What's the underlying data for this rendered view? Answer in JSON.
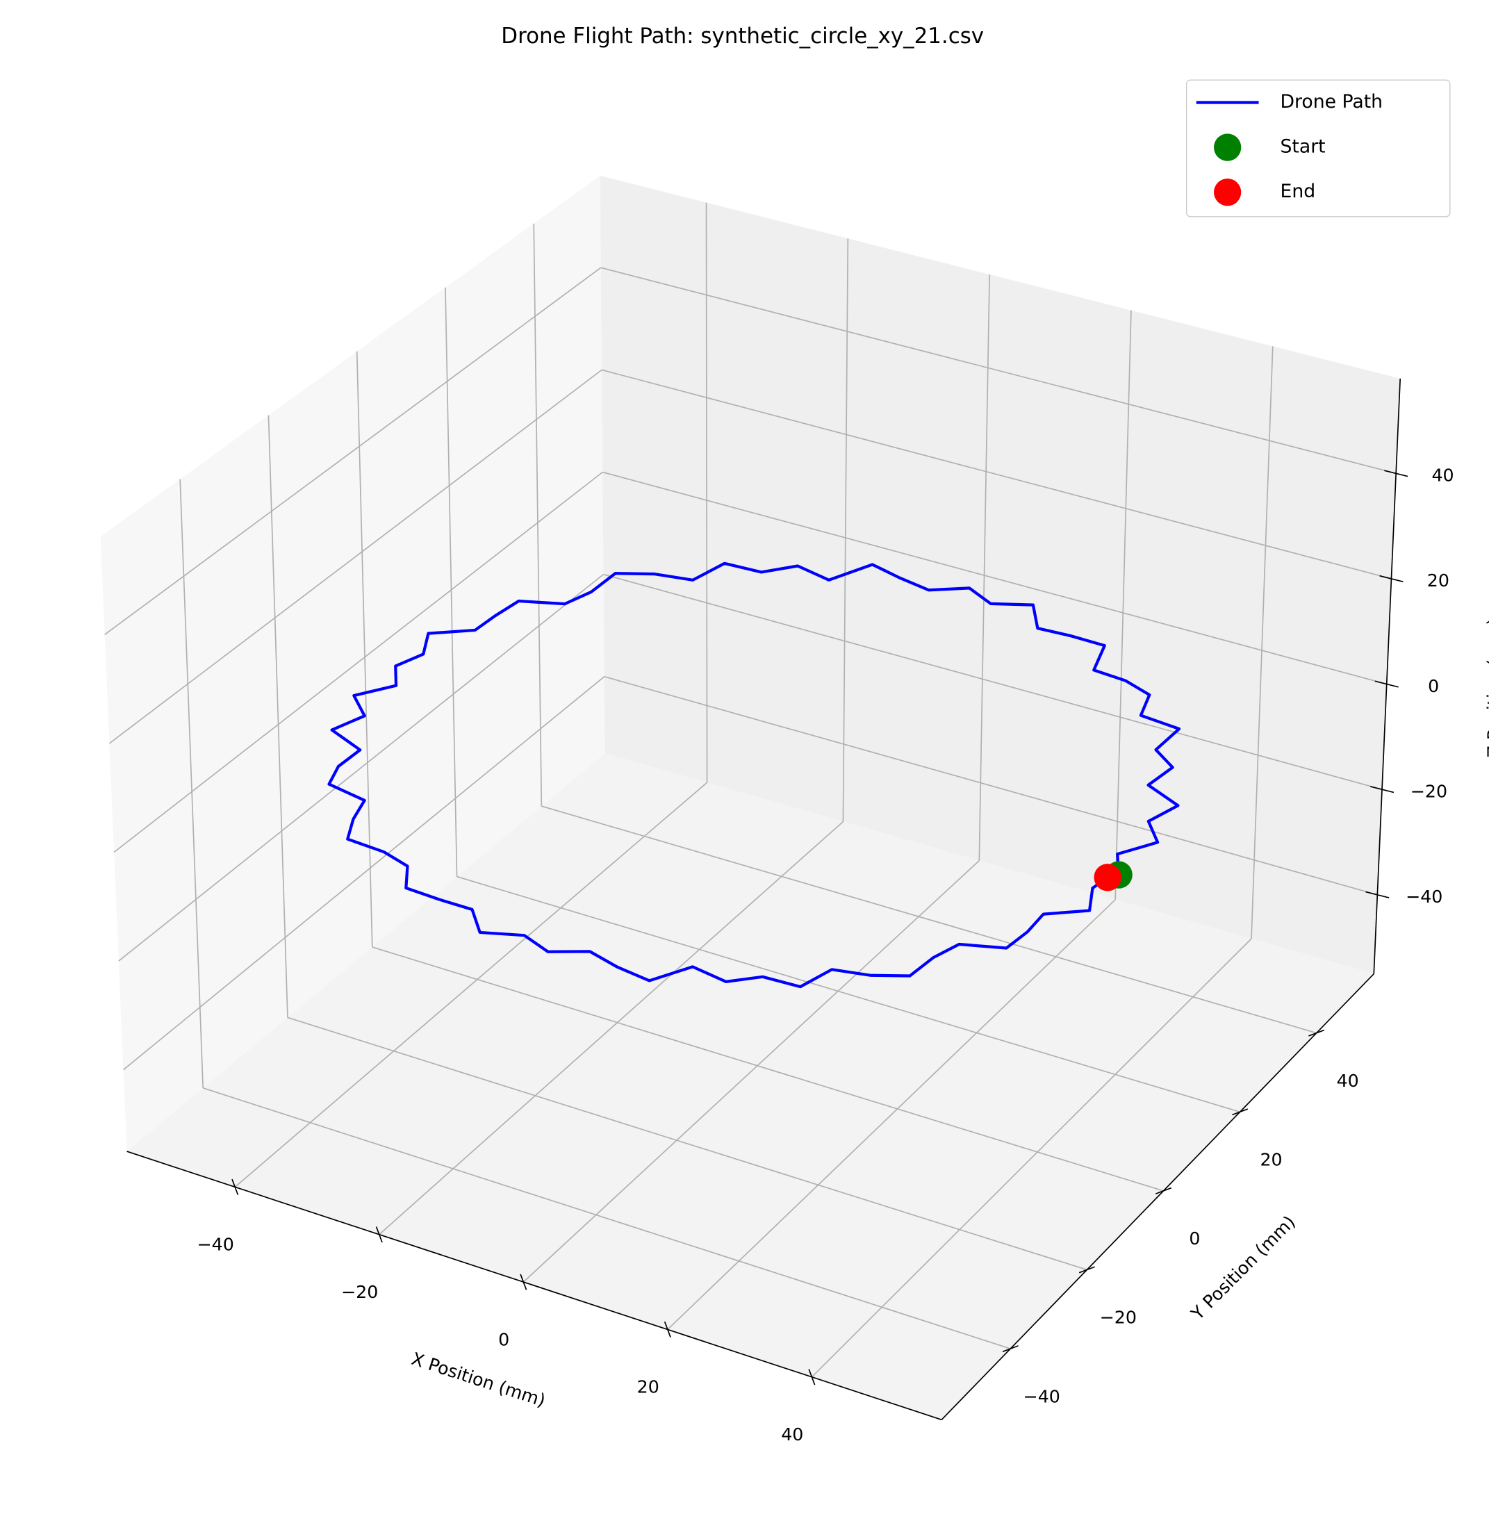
{
  "chart_data": {
    "type": "line3d",
    "title": "Drone Flight Path: synthetic_circle_xy_21.csv",
    "xlabel": "X Position (mm)",
    "ylabel": "Y Position (mm)",
    "zlabel": "Z Position (mm)",
    "xlim": [
      -55,
      58
    ],
    "ylim": [
      -58,
      55
    ],
    "zlim": [
      -55,
      58
    ],
    "xticks": [
      {
        "value": -40,
        "label": "−40"
      },
      {
        "value": -20,
        "label": "−20"
      },
      0,
      20,
      40
    ],
    "yticks": [
      {
        "value": -40,
        "label": "−40"
      },
      {
        "value": -20,
        "label": "−20"
      },
      0,
      20,
      40
    ],
    "zticks": [
      {
        "value": -40,
        "label": "−40"
      },
      {
        "value": -20,
        "label": "−20"
      },
      0,
      20,
      40
    ],
    "grid": true,
    "legend": "upper right",
    "series": [
      {
        "name": "Drone Path",
        "kind": "line",
        "color": "#0000ff",
        "x": [
          50.5,
          48.0,
          51.0,
          47.6,
          49.0,
          43.4,
          44.0,
          40.1,
          40.2,
          34.4,
          32.9,
          28.6,
          23.8,
          22.0,
          17.1,
          12.5,
          9.1,
          4.3,
          0.0,
          -4.2,
          -8.8,
          -13.6,
          -16.3,
          -21.5,
          -24.6,
          -29.7,
          -30.9,
          -35.8,
          -40.0,
          -40.1,
          -41.3,
          -46.5,
          -47.0,
          -47.2,
          -51.6,
          -49.4,
          -50.7,
          -48.1,
          -51.1,
          -47.4,
          -48.9,
          -43.5,
          -43.6,
          -42.3,
          -36.7,
          -35.5,
          -33.6,
          -28.4,
          -24.3,
          -21.8,
          -17.1,
          -12.6,
          -9.1,
          -4.3,
          0.0,
          4.2,
          8.8,
          13.6,
          16.4,
          21.5,
          24.7,
          29.7,
          31.0,
          35.7,
          39.8,
          40.2,
          41.4,
          46.8,
          47.2,
          46.9,
          51.4,
          49.2,
          49.6
        ],
        "y": [
          0.0,
          4.2,
          9.0,
          12.8,
          17.8,
          20.3,
          25.4,
          28.1,
          33.8,
          34.4,
          39.2,
          40.8,
          41.2,
          47.0,
          47.1,
          46.8,
          51.5,
          49.3,
          51.4,
          48.6,
          49.5,
          50.8,
          44.9,
          46.1,
          42.6,
          42.3,
          36.8,
          35.8,
          33.6,
          28.1,
          23.9,
          21.7,
          17.1,
          12.7,
          9.1,
          4.3,
          0.0,
          -4.2,
          -9.0,
          -12.7,
          -17.8,
          -20.3,
          -25.2,
          -29.6,
          -30.8,
          -35.5,
          -40.1,
          -40.5,
          -42.0,
          -46.7,
          -47.0,
          -47.0,
          -51.3,
          -49.1,
          -51.0,
          -48.3,
          -49.8,
          -50.6,
          -45.0,
          -46.0,
          -42.7,
          -42.4,
          -36.9,
          -35.7,
          -33.4,
          -28.2,
          -23.9,
          -21.8,
          -17.2,
          -12.6,
          -9.1,
          -4.3,
          -1.2
        ],
        "z": [
          0,
          0,
          0,
          0,
          0,
          0,
          0,
          0,
          0,
          0,
          0,
          0,
          0,
          0,
          0,
          0,
          0,
          0,
          0,
          0,
          0,
          0,
          0,
          0,
          0,
          0,
          0,
          0,
          0,
          0,
          0,
          0,
          0,
          0,
          0,
          0,
          0,
          0,
          0,
          0,
          0,
          0,
          0,
          0,
          0,
          0,
          0,
          0,
          0,
          0,
          0,
          0,
          0,
          0,
          0,
          0,
          0,
          0,
          0,
          0,
          0,
          0,
          0,
          0,
          0,
          0,
          0,
          0,
          0,
          0,
          0,
          0,
          0
        ]
      },
      {
        "name": "Start",
        "kind": "scatter",
        "color": "#008000",
        "x": [
          50.5
        ],
        "y": [
          0.0
        ],
        "z": [
          0
        ]
      },
      {
        "name": "End",
        "kind": "scatter",
        "color": "#ff0000",
        "x": [
          49.6
        ],
        "y": [
          -1.2
        ],
        "z": [
          0
        ]
      }
    ]
  }
}
